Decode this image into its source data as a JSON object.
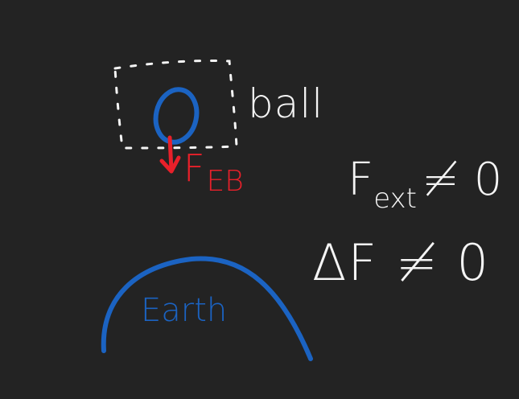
{
  "colors": {
    "background": "#232323",
    "chalk_white": "#f4f4f4",
    "ink_blue": "#1b63c2",
    "ink_red": "#e8202a"
  },
  "labels": {
    "ball": "ball",
    "force_main": "F",
    "force_sub": "EB",
    "fext_main": "F",
    "fext_sub": "ext",
    "fext_rest": "≠ 0",
    "delta_f": "ΔF ≠ 0",
    "earth": "Earth"
  }
}
